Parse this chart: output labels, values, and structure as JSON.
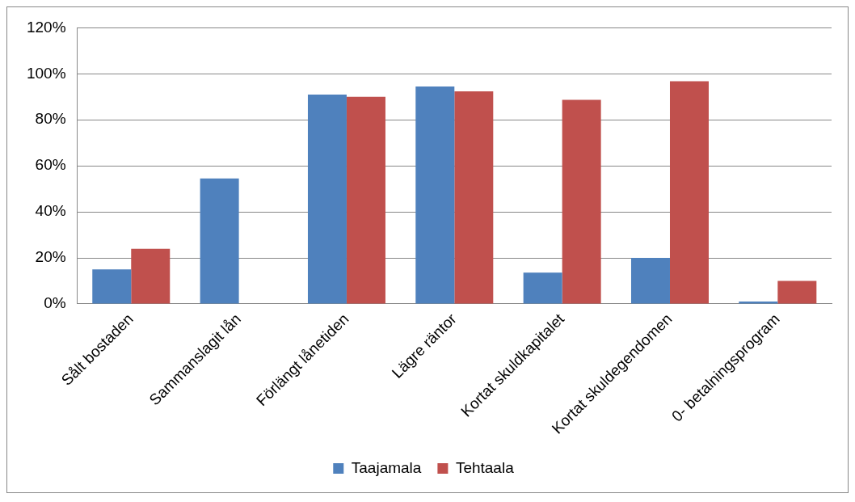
{
  "chart_data": {
    "type": "bar",
    "categories": [
      "Sålt bostaden",
      "Sammanslagit lån",
      "Förlängt lånetiden",
      "Lägre räntor",
      "Kortat skuldkapitalet",
      "Kortat skuldegendomen",
      "0- betalningsprogram"
    ],
    "series": [
      {
        "name": "Taajamala",
        "color": "#4f81bd",
        "values": [
          15,
          54.5,
          91,
          94.5,
          13.6,
          20,
          1
        ]
      },
      {
        "name": "Tehtaala",
        "color": "#c0504d",
        "values": [
          24,
          0,
          90,
          92.4,
          88.7,
          96.8,
          10
        ]
      }
    ],
    "ylim": [
      0,
      120
    ],
    "yticks": [
      {
        "value": 0,
        "label": "0%"
      },
      {
        "value": 20,
        "label": "20%"
      },
      {
        "value": 40,
        "label": "40%"
      },
      {
        "value": 60,
        "label": "60%"
      },
      {
        "value": 80,
        "label": "80%"
      },
      {
        "value": 100,
        "label": "100%"
      },
      {
        "value": 120,
        "label": "120%"
      }
    ],
    "grid": "y",
    "legend": "bottom"
  }
}
